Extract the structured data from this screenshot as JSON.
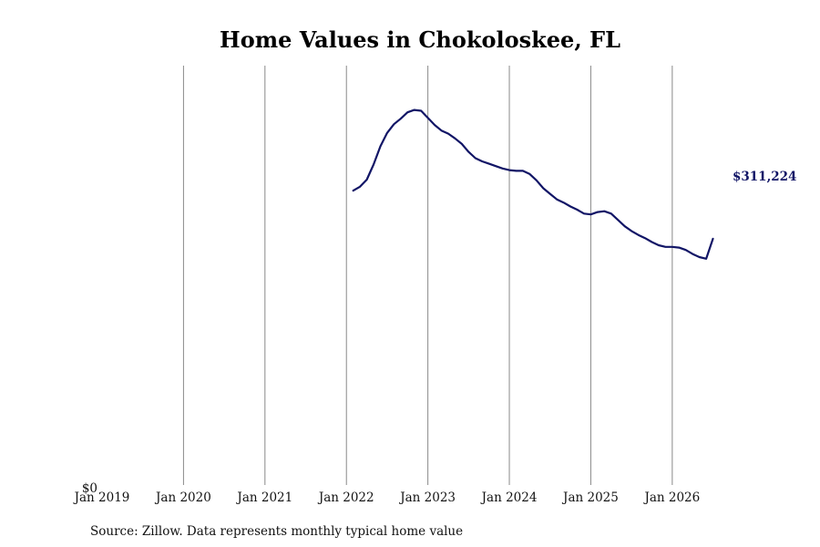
{
  "chart_data": {
    "type": "line",
    "title": "Home Values in Chokoloskee, FL",
    "xlabel": "",
    "ylabel": "",
    "source": "Source: Zillow. Data represents monthly typical home value",
    "x_ticks": [
      "Jan 2019",
      "Jan 2020",
      "Jan 2021",
      "Jan 2022",
      "Jan 2023",
      "Jan 2024",
      "Jan 2025",
      "Jan 2026"
    ],
    "y_ticks": [
      "$0"
    ],
    "xlim": [
      "2019-01",
      "2026-08"
    ],
    "ylim": [
      0,
      530000
    ],
    "grid": "vertical",
    "line_color": "#111566",
    "end_label": "$311,224",
    "series": [
      {
        "x": [
          "2022-02",
          "2022-03",
          "2022-04",
          "2022-05",
          "2022-06",
          "2022-07",
          "2022-08",
          "2022-09",
          "2022-10",
          "2022-11",
          "2022-12",
          "2023-01",
          "2023-02",
          "2023-03",
          "2023-04",
          "2023-05",
          "2023-06",
          "2023-07",
          "2023-08",
          "2023-09",
          "2023-10",
          "2023-11",
          "2023-12",
          "2024-01",
          "2024-02",
          "2024-03",
          "2024-04",
          "2024-05",
          "2024-06",
          "2024-07",
          "2024-08",
          "2024-09",
          "2024-10",
          "2024-11",
          "2024-12",
          "2025-01",
          "2025-02",
          "2025-03",
          "2025-04",
          "2025-05",
          "2025-06",
          "2025-07",
          "2025-08",
          "2025-09",
          "2025-10",
          "2025-11",
          "2025-12",
          "2026-01",
          "2026-02",
          "2026-03",
          "2026-04",
          "2026-05",
          "2026-06",
          "2026-07"
        ],
        "values": [
          372000,
          377000,
          386000,
          405000,
          428000,
          445000,
          456000,
          463000,
          471000,
          474000,
          473000,
          464000,
          455000,
          448000,
          444000,
          438000,
          431000,
          421000,
          413000,
          409000,
          406000,
          403000,
          400000,
          398000,
          397000,
          397000,
          393000,
          385000,
          375000,
          368000,
          361000,
          357000,
          352000,
          348000,
          343000,
          342000,
          345000,
          346000,
          343000,
          335000,
          327000,
          321000,
          316000,
          312000,
          307000,
          303000,
          301000,
          301000,
          300000,
          297000,
          292000,
          288000,
          286000,
          311224
        ]
      }
    ]
  }
}
